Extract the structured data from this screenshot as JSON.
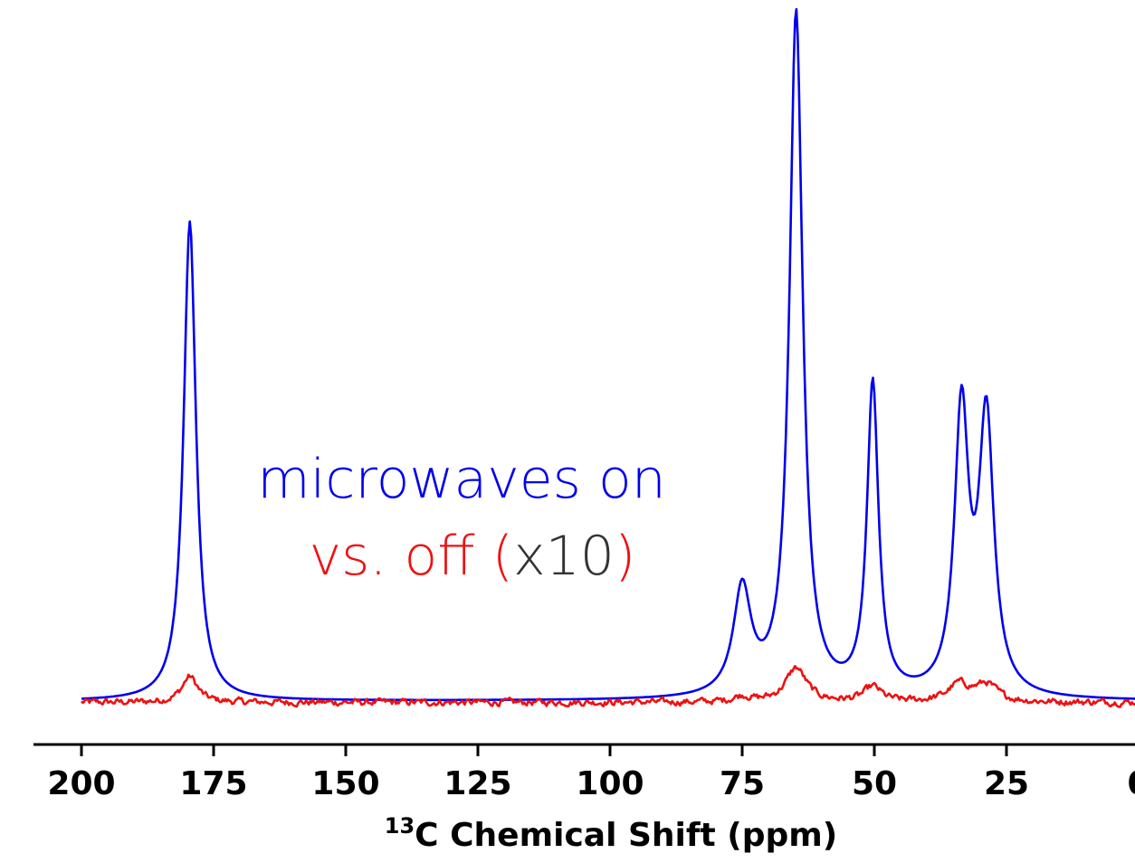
{
  "chart_data": {
    "type": "line",
    "title": "",
    "xlabel_sup": "13",
    "xlabel_main": "C Chemical Shift (ppm)",
    "ylabel": "",
    "x_reversed": true,
    "xlim": [
      0,
      200
    ],
    "ylim": [
      0,
      1.0
    ],
    "y_axis_visible": false,
    "grid": false,
    "xticks": [
      200,
      175,
      150,
      125,
      100,
      75,
      50,
      25,
      0
    ],
    "xtick_labels": [
      "200",
      "175",
      "150",
      "125",
      "100",
      "75",
      "50",
      "25",
      "0"
    ],
    "annotation": {
      "line1": "microwaves on",
      "line1_color": "#0000ee",
      "line2_part1": "vs. off ",
      "line2_part1_color": "#ee1111",
      "line2_paren_open": "(",
      "line2_paren_color": "#ee1111",
      "line2_multiplier": "x10",
      "line2_multiplier_color": "#333333",
      "line2_paren_close": ")"
    },
    "series": [
      {
        "key": "on",
        "color": "#0000ee",
        "baseline": 0,
        "peaks": [
          {
            "center": 179.5,
            "height": 0.7,
            "width": 1.4
          },
          {
            "center": 75.0,
            "height": 0.155,
            "width": 2.0
          },
          {
            "center": 64.8,
            "height": 1.0,
            "width": 1.5
          },
          {
            "center": 50.3,
            "height": 0.455,
            "width": 1.3
          },
          {
            "center": 33.5,
            "height": 0.41,
            "width": 1.6
          },
          {
            "center": 28.8,
            "height": 0.4,
            "width": 1.7
          }
        ]
      },
      {
        "key": "off",
        "color": "#ee1111",
        "baseline": -0.002,
        "noise": 0.004,
        "peaks": [
          {
            "center": 179.5,
            "height": 0.038,
            "width": 1.8
          },
          {
            "center": 75.0,
            "height": 0.008,
            "width": 2.0
          },
          {
            "center": 64.8,
            "height": 0.05,
            "width": 2.4
          },
          {
            "center": 50.3,
            "height": 0.022,
            "width": 2.0
          },
          {
            "center": 34.0,
            "height": 0.025,
            "width": 2.5
          },
          {
            "center": 28.8,
            "height": 0.025,
            "width": 2.5
          }
        ]
      }
    ]
  }
}
